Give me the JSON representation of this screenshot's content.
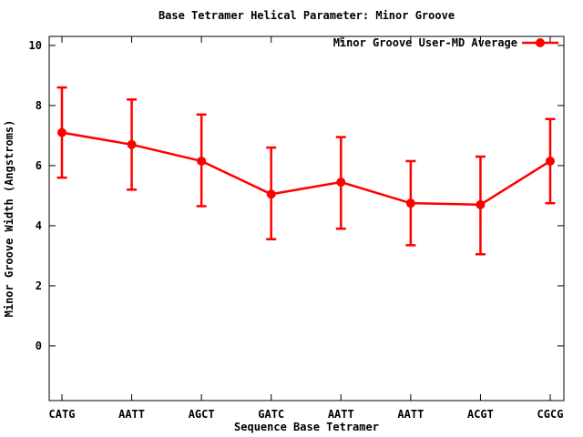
{
  "chart_data": {
    "type": "line",
    "title": "Base Tetramer Helical Parameter: Minor Groove",
    "xlabel": "Sequence Base Tetramer",
    "ylabel": "Minor Groove Width (Angstroms)",
    "categories": [
      "CATG",
      "AATT",
      "AGCT",
      "GATC",
      "AATT",
      "AATT",
      "ACGT",
      "CGCG"
    ],
    "series": [
      {
        "name": "Minor Groove User-MD Average",
        "values": [
          7.1,
          6.7,
          6.15,
          5.05,
          5.45,
          4.75,
          4.7,
          6.15
        ],
        "err_low": [
          5.6,
          5.2,
          4.65,
          3.55,
          3.9,
          3.35,
          3.05,
          4.75
        ],
        "err_high": [
          8.6,
          8.2,
          7.7,
          6.6,
          6.95,
          6.15,
          6.3,
          7.55
        ],
        "color": "#ff0000",
        "marker": "filled-circle"
      }
    ],
    "yticks": [
      0,
      2,
      4,
      6,
      8,
      10
    ],
    "ylim": [
      -1.82,
      10.3
    ],
    "grid": false,
    "legend_position": "top-right-inside",
    "frame_color": "#000000",
    "background_color": "#ffffff"
  }
}
